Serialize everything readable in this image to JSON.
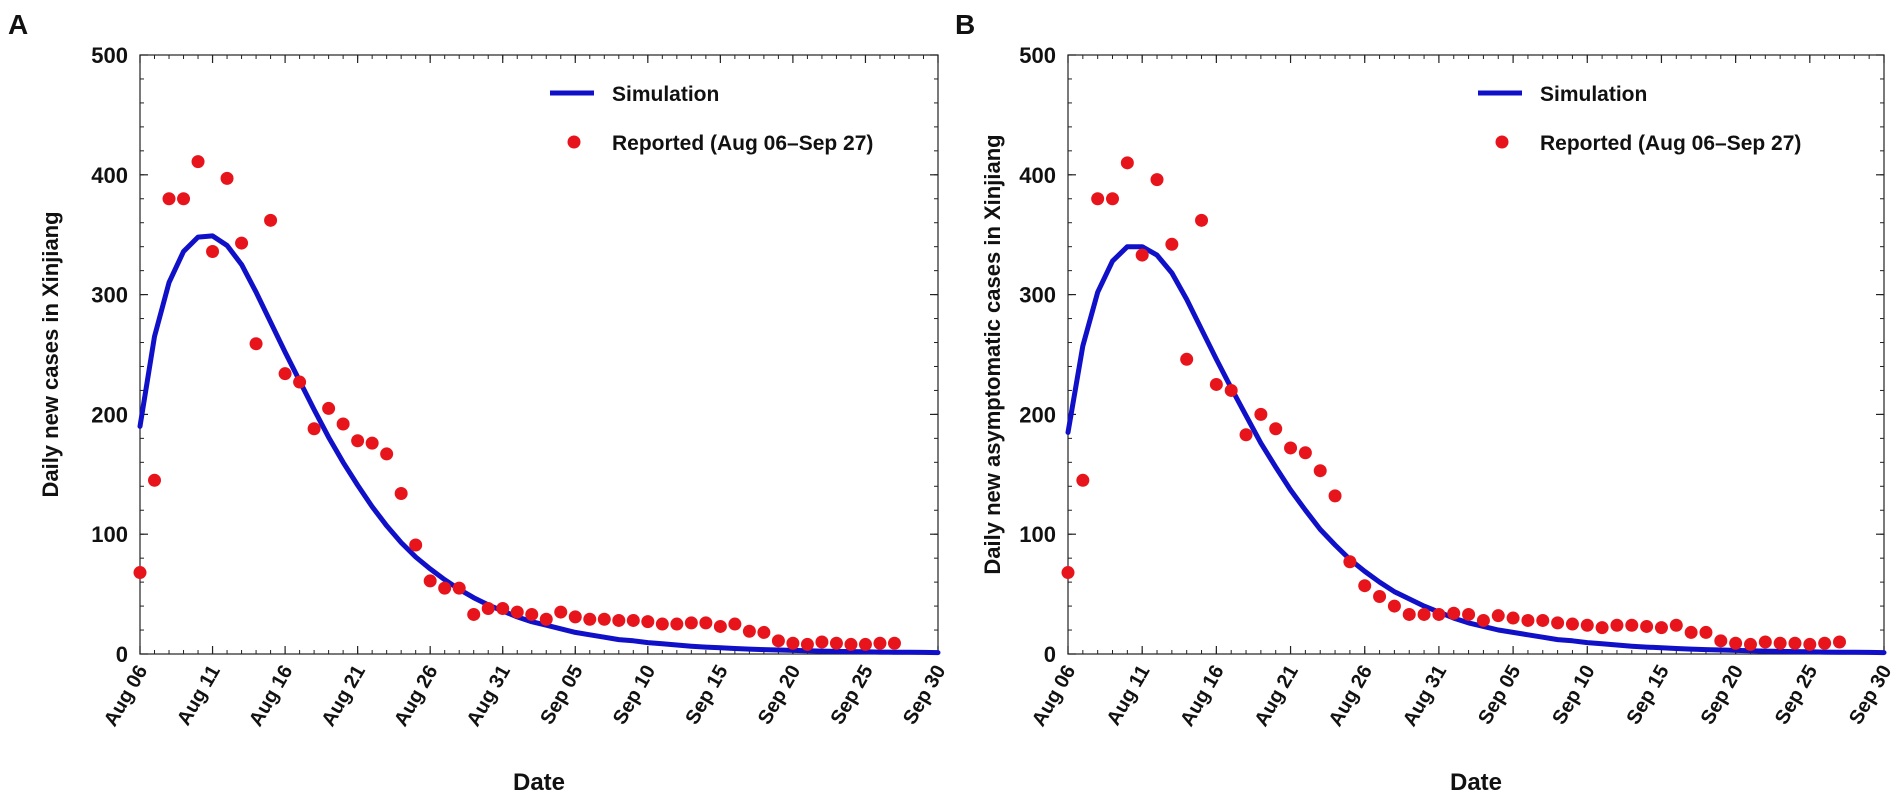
{
  "figure": {
    "panel_labels": [
      "A",
      "B"
    ]
  },
  "chart_data": [
    {
      "panel": "A",
      "type": "scatter+line",
      "ylabel": "Daily new cases in Xinjiang",
      "xlabel": "Date",
      "ylim": [
        0,
        500
      ],
      "yticks": [
        0,
        100,
        200,
        300,
        400,
        500
      ],
      "xlim_day_index": [
        0,
        55
      ],
      "xticks": [
        {
          "day": 0,
          "label": "Aug 06"
        },
        {
          "day": 5,
          "label": "Aug 11"
        },
        {
          "day": 10,
          "label": "Aug 16"
        },
        {
          "day": 15,
          "label": "Aug 21"
        },
        {
          "day": 20,
          "label": "Aug 26"
        },
        {
          "day": 25,
          "label": "Aug 31"
        },
        {
          "day": 30,
          "label": "Sep 05"
        },
        {
          "day": 35,
          "label": "Sep 10"
        },
        {
          "day": 40,
          "label": "Sep 15"
        },
        {
          "day": 45,
          "label": "Sep 20"
        },
        {
          "day": 50,
          "label": "Sep 25"
        },
        {
          "day": 55,
          "label": "Sep 30"
        }
      ],
      "legend": {
        "placement": "top-right",
        "entries": [
          {
            "name": "Simulation",
            "kind": "line",
            "color": "#1010c8"
          },
          {
            "name": "Reported (Aug 06–Sep 27)",
            "kind": "marker",
            "color": "#e8141c"
          }
        ]
      },
      "series": [
        {
          "name": "Simulation",
          "kind": "line",
          "color": "#1010c8",
          "x": [
            0,
            1,
            2,
            3,
            4,
            5,
            6,
            7,
            8,
            9,
            10,
            11,
            12,
            13,
            14,
            15,
            16,
            17,
            18,
            19,
            20,
            21,
            22,
            23,
            24,
            25,
            26,
            27,
            28,
            29,
            30,
            31,
            32,
            33,
            34,
            35,
            36,
            37,
            38,
            39,
            40,
            41,
            42,
            43,
            44,
            45,
            46,
            47,
            48,
            49,
            50,
            51,
            52,
            53,
            54,
            55
          ],
          "y": [
            190,
            265,
            310,
            336,
            348,
            349,
            341,
            325,
            302,
            277,
            252,
            228,
            204,
            181,
            160,
            141,
            123,
            107,
            93,
            81,
            71,
            62,
            54,
            47,
            41,
            36,
            31,
            27,
            24,
            21,
            18,
            16,
            14,
            12,
            11,
            9.5,
            8.5,
            7.5,
            6.5,
            5.8,
            5.2,
            4.6,
            4.1,
            3.7,
            3.3,
            3.0,
            2.7,
            2.4,
            2.2,
            2.0,
            1.8,
            1.6,
            1.5,
            1.4,
            1.3,
            1.2
          ]
        },
        {
          "name": "Reported (Aug 06–Sep 27)",
          "kind": "scatter",
          "color": "#e8141c",
          "x": [
            0,
            1,
            2,
            3,
            4,
            5,
            6,
            7,
            8,
            9,
            10,
            11,
            12,
            13,
            14,
            15,
            16,
            17,
            18,
            19,
            20,
            21,
            22,
            23,
            24,
            25,
            26,
            27,
            28,
            29,
            30,
            31,
            32,
            33,
            34,
            35,
            36,
            37,
            38,
            39,
            40,
            41,
            42,
            43,
            44,
            45,
            46,
            47,
            48,
            49,
            50,
            51,
            52
          ],
          "y": [
            68,
            145,
            380,
            380,
            411,
            336,
            397,
            343,
            259,
            362,
            234,
            227,
            188,
            205,
            192,
            178,
            176,
            167,
            134,
            91,
            61,
            55,
            55,
            33,
            38,
            38,
            35,
            33,
            29,
            35,
            31,
            29,
            29,
            28,
            28,
            27,
            25,
            25,
            26,
            26,
            23,
            25,
            19,
            18,
            11,
            9,
            8,
            10,
            9,
            8,
            8,
            9,
            9
          ]
        }
      ]
    },
    {
      "panel": "B",
      "type": "scatter+line",
      "ylabel": "Daily new asymptomatic cases in Xinjiang",
      "xlabel": "Date",
      "ylim": [
        0,
        500
      ],
      "yticks": [
        0,
        100,
        200,
        300,
        400,
        500
      ],
      "xlim_day_index": [
        0,
        55
      ],
      "xticks": [
        {
          "day": 0,
          "label": "Aug 06"
        },
        {
          "day": 5,
          "label": "Aug 11"
        },
        {
          "day": 10,
          "label": "Aug 16"
        },
        {
          "day": 15,
          "label": "Aug 21"
        },
        {
          "day": 20,
          "label": "Aug 26"
        },
        {
          "day": 25,
          "label": "Aug 31"
        },
        {
          "day": 30,
          "label": "Sep 05"
        },
        {
          "day": 35,
          "label": "Sep 10"
        },
        {
          "day": 40,
          "label": "Sep 15"
        },
        {
          "day": 45,
          "label": "Sep 20"
        },
        {
          "day": 50,
          "label": "Sep 25"
        },
        {
          "day": 55,
          "label": "Sep 30"
        }
      ],
      "legend": {
        "placement": "top-right",
        "entries": [
          {
            "name": "Simulation",
            "kind": "line",
            "color": "#1010c8"
          },
          {
            "name": "Reported (Aug 06–Sep 27)",
            "kind": "marker",
            "color": "#e8141c"
          }
        ]
      },
      "series": [
        {
          "name": "Simulation",
          "kind": "line",
          "color": "#1010c8",
          "x": [
            0,
            1,
            2,
            3,
            4,
            5,
            6,
            7,
            8,
            9,
            10,
            11,
            12,
            13,
            14,
            15,
            16,
            17,
            18,
            19,
            20,
            21,
            22,
            23,
            24,
            25,
            26,
            27,
            28,
            29,
            30,
            31,
            32,
            33,
            34,
            35,
            36,
            37,
            38,
            39,
            40,
            41,
            42,
            43,
            44,
            45,
            46,
            47,
            48,
            49,
            50,
            51,
            52,
            53,
            54,
            55
          ],
          "y": [
            185,
            257,
            302,
            328,
            340,
            340,
            333,
            318,
            296,
            271,
            246,
            222,
            199,
            176,
            156,
            137,
            120,
            104,
            91,
            79,
            69,
            60,
            52,
            46,
            40,
            35,
            30,
            26,
            23,
            20,
            18,
            16,
            14,
            12,
            11,
            9.5,
            8.5,
            7.5,
            6.5,
            5.8,
            5.2,
            4.6,
            4.1,
            3.7,
            3.3,
            3.0,
            2.7,
            2.4,
            2.2,
            2.0,
            1.8,
            1.6,
            1.5,
            1.4,
            1.3,
            1.2
          ]
        },
        {
          "name": "Reported (Aug 06–Sep 27)",
          "kind": "scatter",
          "color": "#e8141c",
          "x": [
            0,
            1,
            2,
            3,
            4,
            5,
            6,
            7,
            8,
            9,
            10,
            11,
            12,
            13,
            14,
            15,
            16,
            17,
            18,
            19,
            20,
            21,
            22,
            23,
            24,
            25,
            26,
            27,
            28,
            29,
            30,
            31,
            32,
            33,
            34,
            35,
            36,
            37,
            38,
            39,
            40,
            41,
            42,
            43,
            44,
            45,
            46,
            47,
            48,
            49,
            50,
            51,
            52
          ],
          "y": [
            68,
            145,
            380,
            380,
            410,
            333,
            396,
            342,
            246,
            362,
            225,
            220,
            183,
            200,
            188,
            172,
            168,
            153,
            132,
            77,
            57,
            48,
            40,
            33,
            33,
            33,
            34,
            33,
            28,
            32,
            30,
            28,
            28,
            26,
            25,
            24,
            22,
            24,
            24,
            23,
            22,
            24,
            18,
            18,
            11,
            9,
            8,
            10,
            9,
            9,
            8,
            9,
            10
          ]
        }
      ]
    }
  ]
}
